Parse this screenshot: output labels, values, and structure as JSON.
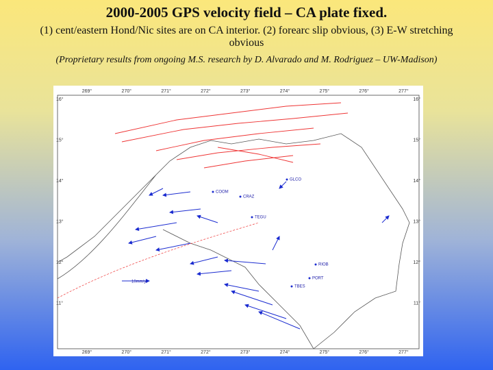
{
  "header": {
    "title": "2000-2005 GPS velocity field – CA plate fixed.",
    "subtitle": "(1) cent/eastern Hond/Nic sites are on CA interior. (2) forearc slip obvious, (3) E-W stretching obvious",
    "credit": "(Proprietary results from ongoing M.S. research by D. Alvarado and M. Rodriguez – UW-Madison)"
  },
  "map": {
    "longitude_labels": [
      "269°",
      "270°",
      "271°",
      "272°",
      "273°",
      "274°",
      "275°",
      "276°",
      "277°"
    ],
    "latitude_labels": [
      "16°",
      "15°",
      "14°",
      "13°",
      "12°",
      "11°"
    ],
    "stations": [
      "GLCO",
      "CRAZ",
      "TEGU",
      "COOM",
      "RIOB",
      "PORT",
      "TBES"
    ],
    "scale_label": "10mm/yr"
  }
}
